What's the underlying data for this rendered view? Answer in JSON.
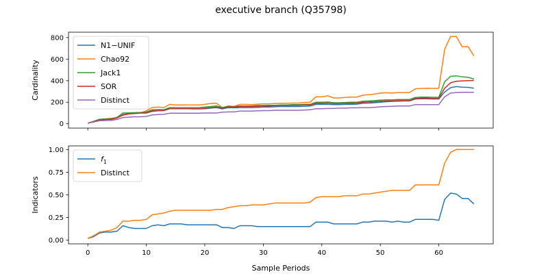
{
  "figure": {
    "title": "executive branch (Q35798)"
  },
  "chart_data": [
    {
      "type": "line",
      "ylabel": "Cardinality",
      "xlim": [
        -3.3,
        69.3
      ],
      "ylim": [
        -40,
        850
      ],
      "yticks": [
        0,
        200,
        400,
        600,
        800
      ],
      "xticks": [
        0,
        10,
        20,
        30,
        40,
        50,
        60
      ],
      "show_x_tick_labels": false,
      "legend_position": "upper left",
      "series": [
        {
          "name": "N1−UNIF",
          "color": "#1f77b4",
          "x": [
            0,
            2,
            3,
            4,
            5,
            6,
            7,
            8,
            9,
            10,
            11,
            12,
            13,
            14,
            15,
            16,
            17,
            18,
            19,
            20,
            21,
            22,
            23,
            24,
            25,
            26,
            27,
            28,
            29,
            30,
            31,
            32,
            33,
            34,
            35,
            36,
            37,
            38,
            39,
            40,
            41,
            42,
            43,
            44,
            45,
            46,
            47,
            48,
            49,
            50,
            51,
            52,
            53,
            54,
            55,
            56,
            57,
            58,
            59,
            60,
            61,
            62,
            63,
            64,
            65,
            66
          ],
          "y": [
            5,
            35,
            40,
            42,
            55,
            85,
            95,
            98,
            100,
            100,
            115,
            120,
            122,
            140,
            140,
            140,
            140,
            138,
            138,
            140,
            145,
            150,
            138,
            150,
            148,
            150,
            150,
            150,
            152,
            155,
            155,
            158,
            160,
            160,
            160,
            160,
            162,
            165,
            180,
            180,
            180,
            178,
            178,
            180,
            180,
            182,
            190,
            192,
            195,
            200,
            205,
            208,
            210,
            212,
            212,
            230,
            232,
            232,
            230,
            230,
            295,
            335,
            345,
            340,
            338,
            330
          ]
        },
        {
          "name": "Chao92",
          "color": "#ff7f0e",
          "x": [
            0,
            2,
            3,
            4,
            5,
            6,
            7,
            8,
            9,
            10,
            11,
            12,
            13,
            14,
            15,
            16,
            17,
            18,
            19,
            20,
            21,
            22,
            23,
            24,
            25,
            26,
            27,
            28,
            29,
            30,
            31,
            32,
            33,
            34,
            35,
            36,
            37,
            38,
            39,
            40,
            41,
            42,
            43,
            44,
            45,
            46,
            47,
            48,
            49,
            50,
            51,
            52,
            53,
            54,
            55,
            56,
            57,
            58,
            59,
            60,
            61,
            62,
            63,
            64,
            65,
            66
          ],
          "y": [
            5,
            38,
            45,
            50,
            55,
            80,
            90,
            95,
            100,
            120,
            150,
            155,
            150,
            180,
            175,
            175,
            175,
            175,
            175,
            180,
            188,
            190,
            150,
            165,
            160,
            180,
            180,
            178,
            182,
            185,
            185,
            188,
            190,
            190,
            192,
            192,
            198,
            200,
            250,
            250,
            260,
            240,
            240,
            245,
            248,
            248,
            265,
            270,
            275,
            285,
            288,
            285,
            290,
            290,
            290,
            325,
            328,
            330,
            328,
            330,
            690,
            810,
            810,
            715,
            715,
            630
          ]
        },
        {
          "name": "Jack1",
          "color": "#2ca02c",
          "x": [
            0,
            2,
            3,
            4,
            5,
            6,
            7,
            8,
            9,
            10,
            11,
            12,
            13,
            14,
            15,
            16,
            17,
            18,
            19,
            20,
            21,
            22,
            23,
            24,
            25,
            26,
            27,
            28,
            29,
            30,
            31,
            32,
            33,
            34,
            35,
            36,
            37,
            38,
            39,
            40,
            41,
            42,
            43,
            44,
            45,
            46,
            47,
            48,
            49,
            50,
            51,
            52,
            53,
            54,
            55,
            56,
            57,
            58,
            59,
            60,
            61,
            62,
            63,
            64,
            65,
            66
          ],
          "y": [
            5,
            42,
            45,
            48,
            60,
            100,
            102,
            103,
            105,
            110,
            130,
            132,
            130,
            150,
            150,
            150,
            150,
            150,
            150,
            155,
            160,
            165,
            150,
            162,
            160,
            165,
            165,
            165,
            170,
            170,
            172,
            172,
            175,
            175,
            178,
            178,
            180,
            180,
            200,
            200,
            202,
            195,
            195,
            198,
            200,
            200,
            210,
            212,
            215,
            220,
            222,
            222,
            225,
            225,
            225,
            245,
            248,
            248,
            246,
            246,
            390,
            440,
            445,
            435,
            432,
            415
          ]
        },
        {
          "name": "SOR",
          "color": "#d62728",
          "x": [
            0,
            2,
            3,
            4,
            5,
            6,
            7,
            8,
            9,
            10,
            11,
            12,
            13,
            14,
            15,
            16,
            17,
            18,
            19,
            20,
            21,
            22,
            23,
            24,
            25,
            26,
            27,
            28,
            29,
            30,
            31,
            32,
            33,
            34,
            35,
            36,
            37,
            38,
            39,
            40,
            41,
            42,
            43,
            44,
            45,
            46,
            47,
            48,
            49,
            50,
            51,
            52,
            53,
            54,
            55,
            56,
            57,
            58,
            59,
            60,
            61,
            62,
            63,
            64,
            65,
            66
          ],
          "y": [
            5,
            35,
            40,
            42,
            55,
            80,
            95,
            95,
            100,
            100,
            120,
            122,
            125,
            140,
            140,
            140,
            140,
            140,
            140,
            145,
            150,
            155,
            145,
            158,
            155,
            160,
            160,
            160,
            162,
            165,
            165,
            168,
            170,
            170,
            172,
            172,
            175,
            175,
            190,
            190,
            192,
            188,
            188,
            190,
            190,
            192,
            200,
            202,
            205,
            210,
            212,
            212,
            215,
            215,
            215,
            235,
            238,
            238,
            236,
            236,
            330,
            380,
            395,
            398,
            400,
            402
          ]
        },
        {
          "name": "Distinct",
          "color": "#9467bd",
          "x": [
            0,
            2,
            3,
            4,
            5,
            6,
            7,
            8,
            9,
            10,
            11,
            12,
            13,
            14,
            15,
            16,
            17,
            18,
            19,
            20,
            21,
            22,
            23,
            24,
            25,
            26,
            27,
            28,
            29,
            30,
            31,
            32,
            33,
            34,
            35,
            36,
            37,
            38,
            39,
            40,
            41,
            42,
            43,
            44,
            45,
            46,
            47,
            48,
            49,
            50,
            51,
            52,
            53,
            54,
            55,
            56,
            57,
            58,
            59,
            60,
            61,
            62,
            63,
            64,
            65,
            66
          ],
          "y": [
            5,
            28,
            30,
            32,
            40,
            58,
            62,
            65,
            65,
            68,
            82,
            85,
            88,
            98,
            98,
            98,
            98,
            98,
            98,
            100,
            100,
            100,
            108,
            110,
            110,
            118,
            118,
            118,
            120,
            122,
            122,
            125,
            125,
            125,
            125,
            125,
            128,
            130,
            140,
            140,
            142,
            142,
            145,
            145,
            148,
            148,
            150,
            150,
            152,
            158,
            160,
            162,
            165,
            165,
            165,
            178,
            178,
            178,
            178,
            178,
            250,
            285,
            290,
            292,
            292,
            292
          ]
        }
      ]
    },
    {
      "type": "line",
      "xlabel": "Sample Periods",
      "ylabel": "Indicators",
      "xlim": [
        -3.3,
        69.3
      ],
      "ylim": [
        -0.04,
        1.04
      ],
      "yticks": [
        "0.00",
        "0.25",
        "0.50",
        "0.75",
        "1.00"
      ],
      "xticks": [
        0,
        10,
        20,
        30,
        40,
        50,
        60
      ],
      "legend_position": "upper left",
      "series": [
        {
          "name": "f",
          "name_subscript": "1",
          "color": "#1f77b4",
          "x": [
            0,
            1,
            2,
            3,
            4,
            5,
            6,
            7,
            8,
            9,
            10,
            11,
            12,
            13,
            14,
            15,
            16,
            17,
            18,
            19,
            20,
            21,
            22,
            23,
            24,
            25,
            26,
            27,
            28,
            29,
            30,
            31,
            32,
            33,
            34,
            35,
            36,
            37,
            38,
            39,
            40,
            41,
            42,
            43,
            44,
            45,
            46,
            47,
            48,
            49,
            50,
            51,
            52,
            53,
            54,
            55,
            56,
            57,
            58,
            59,
            60,
            61,
            62,
            63,
            64,
            65,
            66
          ],
          "y": [
            0.02,
            0.04,
            0.08,
            0.09,
            0.09,
            0.1,
            0.16,
            0.14,
            0.13,
            0.13,
            0.13,
            0.16,
            0.17,
            0.16,
            0.18,
            0.18,
            0.18,
            0.17,
            0.17,
            0.17,
            0.17,
            0.17,
            0.17,
            0.14,
            0.14,
            0.13,
            0.16,
            0.16,
            0.16,
            0.15,
            0.15,
            0.15,
            0.15,
            0.15,
            0.15,
            0.15,
            0.15,
            0.15,
            0.15,
            0.2,
            0.2,
            0.2,
            0.18,
            0.18,
            0.18,
            0.18,
            0.18,
            0.2,
            0.2,
            0.21,
            0.21,
            0.21,
            0.2,
            0.21,
            0.2,
            0.2,
            0.23,
            0.23,
            0.23,
            0.23,
            0.22,
            0.45,
            0.52,
            0.51,
            0.46,
            0.46,
            0.4
          ]
        },
        {
          "name": "Distinct",
          "color": "#ff7f0e",
          "x": [
            0,
            1,
            2,
            3,
            4,
            5,
            6,
            7,
            8,
            9,
            10,
            11,
            12,
            13,
            14,
            15,
            16,
            17,
            18,
            19,
            20,
            21,
            22,
            23,
            24,
            25,
            26,
            27,
            28,
            29,
            30,
            31,
            32,
            33,
            34,
            35,
            36,
            37,
            38,
            39,
            40,
            41,
            42,
            43,
            44,
            45,
            46,
            47,
            48,
            49,
            50,
            51,
            52,
            53,
            54,
            55,
            56,
            57,
            58,
            59,
            60,
            61,
            62,
            63,
            64,
            65,
            66
          ],
          "y": [
            0.02,
            0.05,
            0.09,
            0.1,
            0.11,
            0.14,
            0.21,
            0.21,
            0.22,
            0.22,
            0.23,
            0.28,
            0.29,
            0.3,
            0.32,
            0.33,
            0.33,
            0.33,
            0.33,
            0.33,
            0.33,
            0.33,
            0.34,
            0.34,
            0.36,
            0.37,
            0.38,
            0.38,
            0.39,
            0.39,
            0.39,
            0.4,
            0.41,
            0.41,
            0.41,
            0.41,
            0.41,
            0.41,
            0.42,
            0.47,
            0.48,
            0.48,
            0.48,
            0.48,
            0.49,
            0.49,
            0.49,
            0.51,
            0.51,
            0.52,
            0.53,
            0.54,
            0.55,
            0.55,
            0.55,
            0.55,
            0.61,
            0.61,
            0.61,
            0.61,
            0.61,
            0.85,
            0.97,
            1.0,
            1.0,
            1.0,
            1.0
          ]
        }
      ]
    }
  ]
}
